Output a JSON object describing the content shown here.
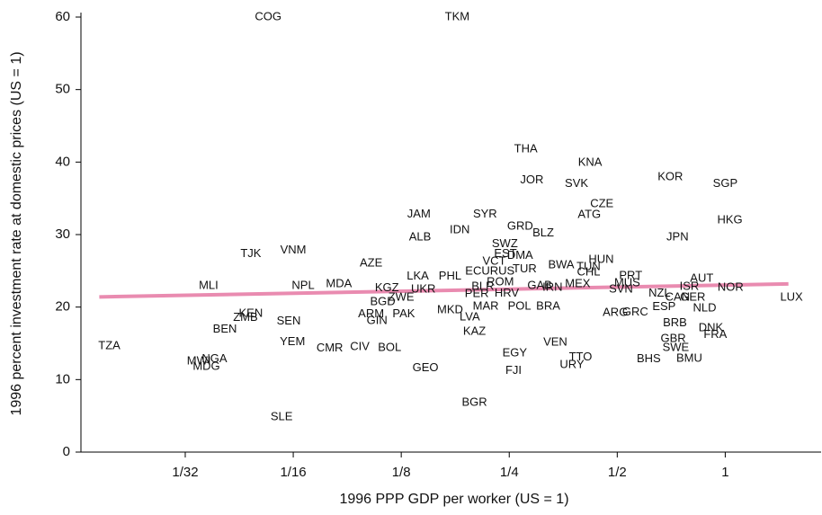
{
  "chart_data": {
    "type": "scatter",
    "x_scale": "log",
    "xlabel": "1996 PPP GDP per worker (US = 1)",
    "ylabel": "1996 percent investment rate at domestic prices (US = 1)",
    "xlim": [
      0.016,
      1.85
    ],
    "ylim": [
      0,
      60
    ],
    "xticks": [
      {
        "value": 0.03125,
        "label": "1/32"
      },
      {
        "value": 0.0625,
        "label": "1/16"
      },
      {
        "value": 0.125,
        "label": "1/8"
      },
      {
        "value": 0.25,
        "label": "1/4"
      },
      {
        "value": 0.5,
        "label": "1/2"
      },
      1
    ],
    "yticks": [
      0,
      10,
      20,
      30,
      40,
      50,
      60
    ],
    "trend": {
      "color": "#e98bb0",
      "x": [
        0.018,
        1.5
      ],
      "y": [
        21.4,
        23.2
      ]
    },
    "points": [
      {
        "label": "COG",
        "x": 0.0532,
        "y": 60
      },
      {
        "label": "TKM",
        "x": 0.179,
        "y": 60
      },
      {
        "label": "THA",
        "x": 0.278,
        "y": 41.8
      },
      {
        "label": "KNA",
        "x": 0.42,
        "y": 39.9
      },
      {
        "label": "JOR",
        "x": 0.289,
        "y": 37.5
      },
      {
        "label": "SVK",
        "x": 0.385,
        "y": 37.0
      },
      {
        "label": "KOR",
        "x": 0.703,
        "y": 37.9
      },
      {
        "label": "SGP",
        "x": 1.0,
        "y": 37.0
      },
      {
        "label": "CZE",
        "x": 0.453,
        "y": 34.2
      },
      {
        "label": "ATG",
        "x": 0.418,
        "y": 32.7
      },
      {
        "label": "HKG",
        "x": 1.03,
        "y": 32.0
      },
      {
        "label": "JAM",
        "x": 0.14,
        "y": 32.8
      },
      {
        "label": "SYR",
        "x": 0.214,
        "y": 32.8
      },
      {
        "label": "GRD",
        "x": 0.268,
        "y": 31.1
      },
      {
        "label": "IDN",
        "x": 0.182,
        "y": 30.6
      },
      {
        "label": "BLZ",
        "x": 0.311,
        "y": 30.2
      },
      {
        "label": "ALB",
        "x": 0.141,
        "y": 29.6
      },
      {
        "label": "JPN",
        "x": 0.736,
        "y": 29.6
      },
      {
        "label": "SWZ",
        "x": 0.243,
        "y": 28.7
      },
      {
        "label": "TJK",
        "x": 0.0476,
        "y": 27.3
      },
      {
        "label": "VNM",
        "x": 0.0625,
        "y": 27.8
      },
      {
        "label": "EST",
        "x": 0.244,
        "y": 27.3
      },
      {
        "label": "DMA",
        "x": 0.268,
        "y": 27.1
      },
      {
        "label": "HUN",
        "x": 0.451,
        "y": 26.5
      },
      {
        "label": "VCT",
        "x": 0.227,
        "y": 26.3
      },
      {
        "label": "AZE",
        "x": 0.103,
        "y": 26.0
      },
      {
        "label": "BWA",
        "x": 0.349,
        "y": 25.8
      },
      {
        "label": "TUN",
        "x": 0.416,
        "y": 25.5
      },
      {
        "label": "ECU",
        "x": 0.204,
        "y": 24.9
      },
      {
        "label": "RUS",
        "x": 0.239,
        "y": 24.9
      },
      {
        "label": "TUR",
        "x": 0.276,
        "y": 25.2
      },
      {
        "label": "CHL",
        "x": 0.416,
        "y": 24.8
      },
      {
        "label": "LKA",
        "x": 0.139,
        "y": 24.2
      },
      {
        "label": "PHL",
        "x": 0.171,
        "y": 24.2
      },
      {
        "label": "PRT",
        "x": 0.545,
        "y": 24.3
      },
      {
        "label": "ROM",
        "x": 0.236,
        "y": 23.4
      },
      {
        "label": "MUS",
        "x": 0.533,
        "y": 23.3
      },
      {
        "label": "AUT",
        "x": 0.86,
        "y": 23.9
      },
      {
        "label": "MLI",
        "x": 0.0363,
        "y": 22.9
      },
      {
        "label": "NPL",
        "x": 0.0666,
        "y": 22.9
      },
      {
        "label": "MDA",
        "x": 0.0838,
        "y": 23.2
      },
      {
        "label": "GAB",
        "x": 0.304,
        "y": 22.9
      },
      {
        "label": "MEX",
        "x": 0.388,
        "y": 23.2
      },
      {
        "label": "BLR",
        "x": 0.211,
        "y": 22.8
      },
      {
        "label": "PER",
        "x": 0.203,
        "y": 21.8
      },
      {
        "label": "HRV",
        "x": 0.246,
        "y": 21.9
      },
      {
        "label": "IRN",
        "x": 0.33,
        "y": 22.7
      },
      {
        "label": "SVN",
        "x": 0.512,
        "y": 22.4
      },
      {
        "label": "NOR",
        "x": 1.035,
        "y": 22.7
      },
      {
        "label": "ISR",
        "x": 0.794,
        "y": 22.8
      },
      {
        "label": "NZL",
        "x": 0.656,
        "y": 21.9
      },
      {
        "label": "KGZ",
        "x": 0.114,
        "y": 22.6
      },
      {
        "label": "UKR",
        "x": 0.144,
        "y": 22.4
      },
      {
        "label": "LUX",
        "x": 1.53,
        "y": 21.3
      },
      {
        "label": "CAN",
        "x": 0.736,
        "y": 21.3
      },
      {
        "label": "GER",
        "x": 0.812,
        "y": 21.3
      },
      {
        "label": "NLD",
        "x": 0.876,
        "y": 19.8
      },
      {
        "label": "ESP",
        "x": 0.675,
        "y": 20.0
      },
      {
        "label": "GRC",
        "x": 0.561,
        "y": 19.3
      },
      {
        "label": "ARG",
        "x": 0.494,
        "y": 19.2
      },
      {
        "label": "BRA",
        "x": 0.321,
        "y": 20.1
      },
      {
        "label": "POL",
        "x": 0.267,
        "y": 20.1
      },
      {
        "label": "MAR",
        "x": 0.215,
        "y": 20.1
      },
      {
        "label": "BGD",
        "x": 0.111,
        "y": 20.7
      },
      {
        "label": "ZWE",
        "x": 0.125,
        "y": 21.3
      },
      {
        "label": "MKD",
        "x": 0.171,
        "y": 19.6
      },
      {
        "label": "LVA",
        "x": 0.194,
        "y": 18.6
      },
      {
        "label": "PAK",
        "x": 0.127,
        "y": 19.0
      },
      {
        "label": "ARM",
        "x": 0.103,
        "y": 19.0
      },
      {
        "label": "GIN",
        "x": 0.107,
        "y": 18.1
      },
      {
        "label": "KEN",
        "x": 0.0476,
        "y": 19.1
      },
      {
        "label": "ZMB",
        "x": 0.046,
        "y": 18.5
      },
      {
        "label": "SEN",
        "x": 0.0607,
        "y": 18.0
      },
      {
        "label": "BEN",
        "x": 0.0403,
        "y": 16.9
      },
      {
        "label": "KAZ",
        "x": 0.2,
        "y": 16.6
      },
      {
        "label": "BRB",
        "x": 0.724,
        "y": 17.8
      },
      {
        "label": "DNK",
        "x": 0.912,
        "y": 17.1
      },
      {
        "label": "FRA",
        "x": 0.938,
        "y": 16.2
      },
      {
        "label": "GBR",
        "x": 0.716,
        "y": 15.6
      },
      {
        "label": "SWE",
        "x": 0.728,
        "y": 14.4
      },
      {
        "label": "YEM",
        "x": 0.0622,
        "y": 15.2
      },
      {
        "label": "CMR",
        "x": 0.079,
        "y": 14.3
      },
      {
        "label": "CIV",
        "x": 0.0958,
        "y": 14.5
      },
      {
        "label": "BOL",
        "x": 0.116,
        "y": 14.4
      },
      {
        "label": "VEN",
        "x": 0.336,
        "y": 15.1
      },
      {
        "label": "EGY",
        "x": 0.259,
        "y": 13.6
      },
      {
        "label": "TTO",
        "x": 0.395,
        "y": 13.1
      },
      {
        "label": "BHS",
        "x": 0.612,
        "y": 12.8
      },
      {
        "label": "BMU",
        "x": 0.794,
        "y": 12.9
      },
      {
        "label": "URY",
        "x": 0.374,
        "y": 12.0
      },
      {
        "label": "FJI",
        "x": 0.257,
        "y": 11.2
      },
      {
        "label": "GEO",
        "x": 0.146,
        "y": 11.6
      },
      {
        "label": "TZA",
        "x": 0.0192,
        "y": 14.6
      },
      {
        "label": "MWI",
        "x": 0.0341,
        "y": 12.5
      },
      {
        "label": "NGA",
        "x": 0.0377,
        "y": 12.8
      },
      {
        "label": "MDG",
        "x": 0.0358,
        "y": 11.8
      },
      {
        "label": "BGR",
        "x": 0.2,
        "y": 6.8
      },
      {
        "label": "SLE",
        "x": 0.058,
        "y": 4.8
      }
    ]
  }
}
